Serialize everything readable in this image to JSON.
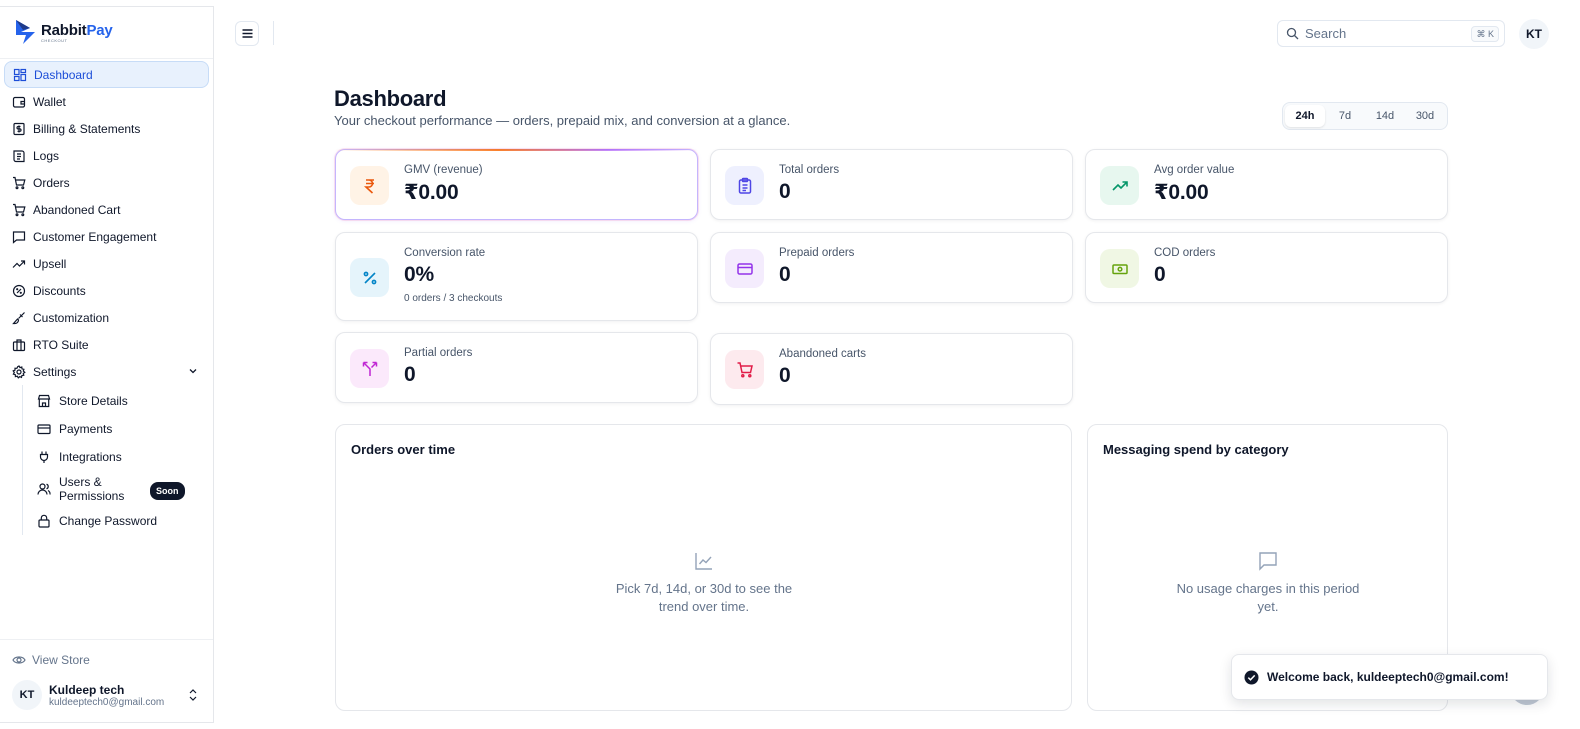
{
  "brand": {
    "name_part1": "Rabbit",
    "name_part2": "Pay",
    "tagline": "CHECKOUT",
    "accent": "#2563eb"
  },
  "sidebar": {
    "items": [
      {
        "label": "Dashboard",
        "icon": "dashboard-icon",
        "active": true
      },
      {
        "label": "Wallet",
        "icon": "wallet-icon"
      },
      {
        "label": "Billing & Statements",
        "icon": "billing-icon"
      },
      {
        "label": "Logs",
        "icon": "logs-icon"
      },
      {
        "label": "Orders",
        "icon": "cart-icon"
      },
      {
        "label": "Abandoned Cart",
        "icon": "cart-icon"
      },
      {
        "label": "Customer Engagement",
        "icon": "message-icon"
      },
      {
        "label": "Upsell",
        "icon": "trending-up-icon"
      },
      {
        "label": "Discounts",
        "icon": "discount-icon"
      },
      {
        "label": "Customization",
        "icon": "brush-icon"
      },
      {
        "label": "RTO Suite",
        "icon": "briefcase-icon"
      },
      {
        "label": "Settings",
        "icon": "gear-icon",
        "expanded": true
      }
    ],
    "settings_sub": [
      {
        "label": "Store Details",
        "icon": "store-icon"
      },
      {
        "label": "Payments",
        "icon": "credit-card-icon"
      },
      {
        "label": "Integrations",
        "icon": "plug-icon"
      },
      {
        "label": "Users &",
        "label2": "Permissions",
        "icon": "users-icon",
        "badge": "Soon"
      },
      {
        "label": "Change Password",
        "icon": "lock-icon"
      }
    ],
    "footer": {
      "view_store": "View Store",
      "user_initials": "KT",
      "user_name": "Kuldeep tech",
      "user_email": "kuldeeptech0@gmail.com"
    }
  },
  "topbar": {
    "search_placeholder": "Search",
    "search_shortcut": "⌘ K",
    "avatar_initials": "KT"
  },
  "header": {
    "title": "Dashboard",
    "subtitle": "Your checkout performance — orders, prepaid mix, and conversion at a glance.",
    "ranges": [
      "24h",
      "7d",
      "14d",
      "30d"
    ],
    "selected_range": "24h"
  },
  "stats": {
    "gmv": {
      "label": "GMV (revenue)",
      "value": "₹0.00",
      "icon": "rupee-icon",
      "color": "#ea580c"
    },
    "total_orders": {
      "label": "Total orders",
      "value": "0",
      "icon": "clipboard-icon",
      "color": "#4f46e5"
    },
    "aov": {
      "label": "Avg order value",
      "value": "₹0.00",
      "icon": "trending-up-icon",
      "color": "#059669"
    },
    "conversion": {
      "label": "Conversion rate",
      "value": "0%",
      "sub": "0 orders / 3 checkouts",
      "icon": "percent-icon",
      "color": "#0284c7"
    },
    "prepaid": {
      "label": "Prepaid orders",
      "value": "0",
      "icon": "credit-card-icon",
      "color": "#9333ea"
    },
    "cod": {
      "label": "COD orders",
      "value": "0",
      "icon": "cash-icon",
      "color": "#65a30d"
    },
    "partial": {
      "label": "Partial orders",
      "value": "0",
      "icon": "split-icon",
      "color": "#c026d3"
    },
    "abandoned": {
      "label": "Abandoned carts",
      "value": "0",
      "icon": "cart-icon",
      "color": "#e11d48"
    }
  },
  "panels": {
    "orders": {
      "title": "Orders over time",
      "empty_line1": "Pick 7d, 14d, or 30d to see the",
      "empty_line2": "trend over time.",
      "icon": "line-chart-icon"
    },
    "messaging": {
      "title": "Messaging spend by category",
      "empty_line1": "No usage charges in this period",
      "empty_line2": "yet.",
      "icon": "message-icon"
    }
  },
  "toast": {
    "message": "Welcome back, kuldeeptech0@gmail.com!",
    "icon": "check-circle-icon"
  }
}
